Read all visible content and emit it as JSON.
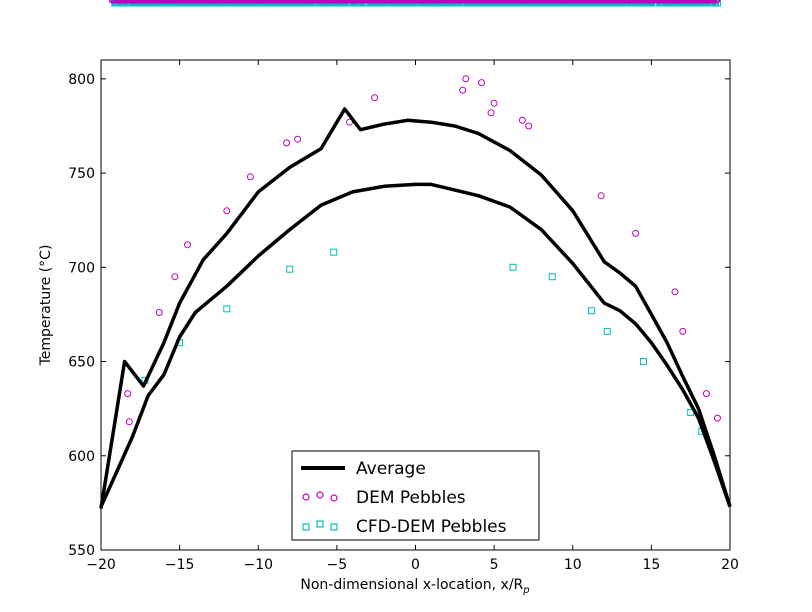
{
  "chart_data": {
    "type": "scatter",
    "title": "",
    "xlabel": "Non-dimensional x-location, x/R",
    "xlabel_sub": "p",
    "ylabel": "Temperature (°C)",
    "xlim": [
      -20,
      20
    ],
    "ylim": [
      550,
      810
    ],
    "xticks": [
      -20,
      -15,
      -10,
      -5,
      0,
      5,
      10,
      15,
      20
    ],
    "yticks": [
      550,
      600,
      650,
      700,
      750,
      800
    ],
    "grid": false,
    "legend_position": "bottom-center",
    "legend": [
      {
        "label": "Average",
        "marker": "line",
        "color": "#000000"
      },
      {
        "label": "DEM Pebbles",
        "marker": "circle",
        "color": "#bf00bf"
      },
      {
        "label": "CFD-DEM Pebbles",
        "marker": "square",
        "color": "#00bfbf"
      }
    ],
    "series": [
      {
        "name": "DEM Pebbles",
        "marker": "circle",
        "color": "#bf00bf",
        "profile": {
          "x": [
            -19,
            -18,
            -17,
            -16,
            -15,
            -14,
            -13,
            -12,
            -11,
            -10,
            -9,
            -8,
            -7,
            -6,
            -5,
            -4,
            -3,
            -2,
            -1,
            0,
            1,
            2,
            3,
            4,
            5,
            6,
            7,
            8,
            9,
            10,
            11,
            12,
            13,
            14,
            15,
            16,
            17,
            18,
            19
          ],
          "y": [
            618,
            632,
            645,
            660,
            675,
            688,
            700,
            712,
            722,
            732,
            741,
            749,
            756,
            762,
            767,
            771,
            774,
            776,
            777,
            778,
            777,
            775,
            772,
            769,
            765,
            760,
            754,
            747,
            739,
            729,
            718,
            706,
            693,
            679,
            665,
            651,
            637,
            625,
            614
          ],
          "spread": 14
        },
        "outliers": [
          {
            "x": -2.6,
            "y": 790
          },
          {
            "x": 3.2,
            "y": 800
          },
          {
            "x": 4.2,
            "y": 798
          },
          {
            "x": 3.0,
            "y": 794
          },
          {
            "x": 5.0,
            "y": 787
          },
          {
            "x": 4.8,
            "y": 782
          },
          {
            "x": 6.8,
            "y": 778
          },
          {
            "x": 7.2,
            "y": 775
          },
          {
            "x": 14.0,
            "y": 718
          },
          {
            "x": 16.5,
            "y": 687
          },
          {
            "x": 17.0,
            "y": 666
          },
          {
            "x": 11.8,
            "y": 738
          },
          {
            "x": -7.5,
            "y": 768
          },
          {
            "x": -8.2,
            "y": 766
          },
          {
            "x": -10.5,
            "y": 748
          },
          {
            "x": -12.0,
            "y": 730
          },
          {
            "x": -14.5,
            "y": 712
          },
          {
            "x": -15.3,
            "y": 695
          },
          {
            "x": -16.3,
            "y": 676
          },
          {
            "x": -18.3,
            "y": 633
          },
          {
            "x": -18.2,
            "y": 618
          },
          {
            "x": 19.2,
            "y": 620
          },
          {
            "x": 18.5,
            "y": 633
          },
          {
            "x": -4.2,
            "y": 777
          }
        ]
      },
      {
        "name": "CFD-DEM Pebbles",
        "marker": "square",
        "color": "#00bfbf",
        "profile": {
          "x": [
            -19,
            -18,
            -17,
            -16,
            -15,
            -14,
            -13,
            -12,
            -11,
            -10,
            -9,
            -8,
            -7,
            -6,
            -5,
            -4,
            -3,
            -2,
            -1,
            0,
            1,
            2,
            3,
            4,
            5,
            6,
            7,
            8,
            9,
            10,
            11,
            12,
            13,
            14,
            15,
            16,
            17,
            18,
            19
          ],
          "y": [
            614,
            626,
            638,
            651,
            664,
            675,
            686,
            696,
            704,
            711,
            717,
            722,
            726,
            730,
            734,
            737,
            739,
            741,
            742,
            742,
            741,
            739,
            736,
            733,
            729,
            724,
            718,
            711,
            703,
            694,
            684,
            674,
            663,
            652,
            641,
            631,
            621,
            613,
            605
          ],
          "spread": 12
        },
        "outliers": [
          {
            "x": -8.0,
            "y": 699
          },
          {
            "x": -12.0,
            "y": 678
          },
          {
            "x": -5.2,
            "y": 708
          },
          {
            "x": 6.2,
            "y": 700
          },
          {
            "x": 8.7,
            "y": 695
          },
          {
            "x": 11.2,
            "y": 677
          },
          {
            "x": 12.2,
            "y": 666
          },
          {
            "x": -17.2,
            "y": 640
          },
          {
            "x": -15.0,
            "y": 660
          },
          {
            "x": 14.5,
            "y": 650
          },
          {
            "x": 17.5,
            "y": 623
          },
          {
            "x": 18.2,
            "y": 613
          }
        ]
      }
    ],
    "average": {
      "name": "Average",
      "x": [
        -20,
        -18.5,
        -17.3,
        -16,
        -15,
        -13.5,
        -12,
        -10,
        -8,
        -6,
        -4.5,
        -3.5,
        -2,
        -0.5,
        1,
        2.5,
        4,
        6,
        8,
        10,
        12,
        13,
        14,
        15,
        16,
        17,
        18,
        19,
        20
      ],
      "y": [
        572,
        650,
        637,
        660,
        681,
        704,
        718,
        740,
        753,
        763,
        784,
        773,
        776,
        778,
        777,
        775,
        771,
        762,
        749,
        730,
        703,
        697,
        690,
        675,
        660,
        642,
        625,
        600,
        573
      ]
    },
    "average_cfd": {
      "name": "Average",
      "x": [
        -20,
        -18,
        -17,
        -16,
        -15,
        -14,
        -12,
        -10,
        -8,
        -6,
        -4,
        -2,
        0,
        1,
        2,
        4,
        6,
        8,
        10,
        12,
        13,
        14,
        15,
        16,
        17,
        18,
        19,
        20
      ],
      "y": [
        573,
        610,
        632,
        643,
        663,
        676,
        690,
        706,
        720,
        733,
        740,
        743,
        744,
        744,
        742,
        738,
        732,
        720,
        702,
        681,
        677,
        670,
        660,
        648,
        635,
        620,
        597,
        573
      ]
    }
  }
}
